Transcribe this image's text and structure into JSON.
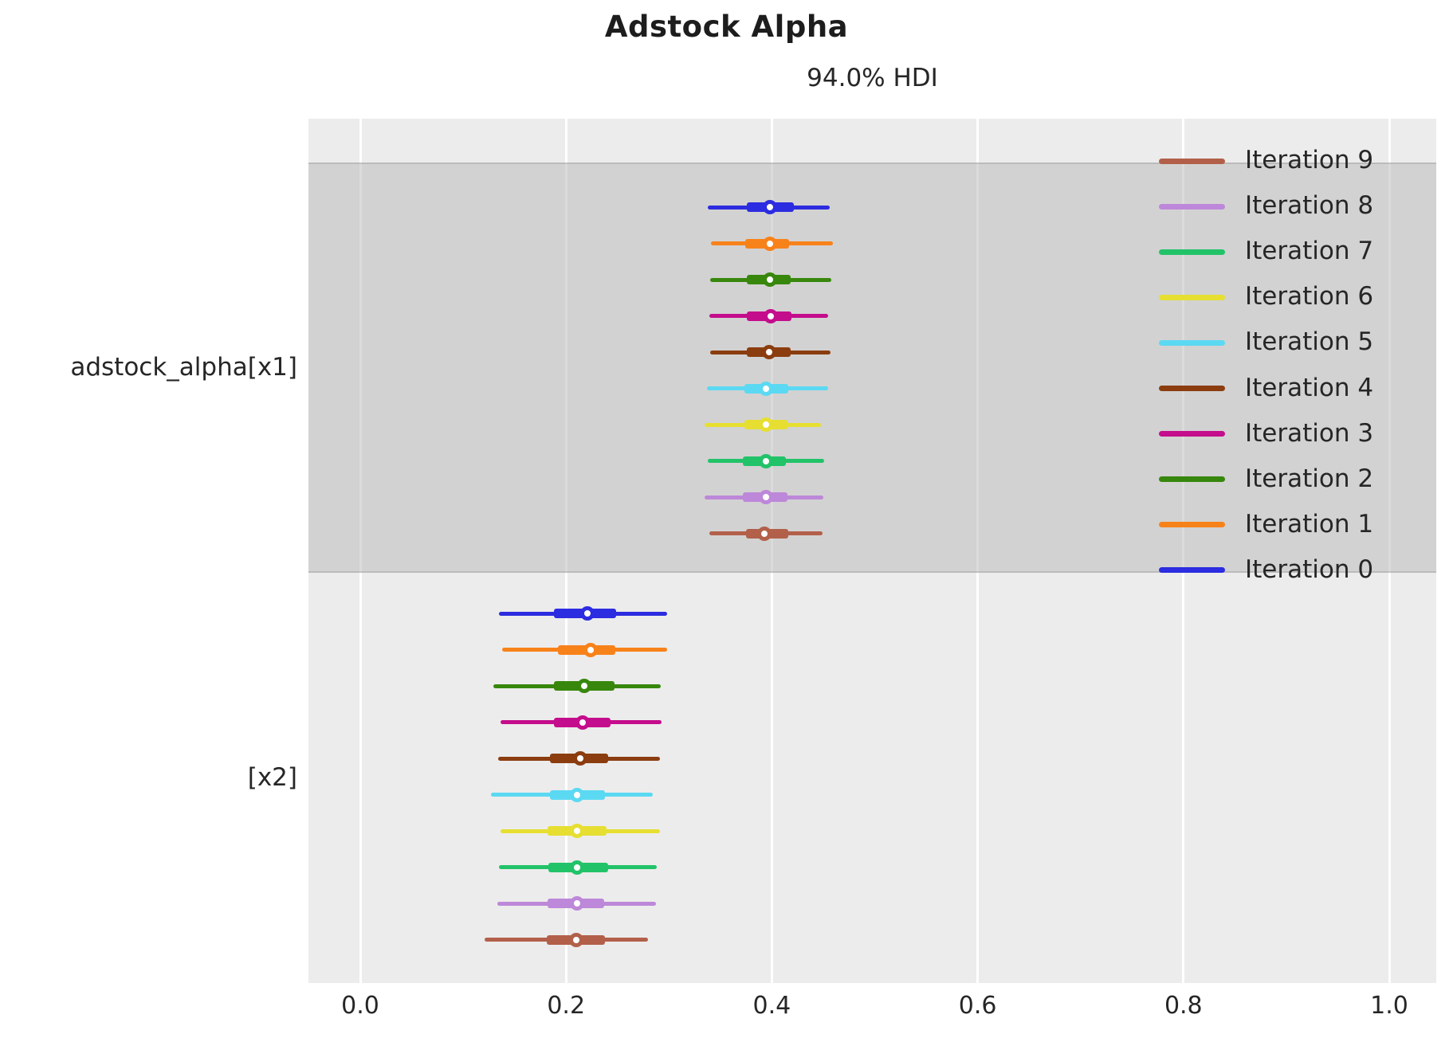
{
  "title": "Adstock Alpha",
  "subtitle": "94.0% HDI",
  "colors": {
    "figure_background": "#ffffff",
    "plot_background": "#ececec",
    "shaded_band": "#d4d4d4",
    "gridline": "#ffffff",
    "text": "#262626"
  },
  "chart_data": {
    "type": "forest",
    "title": "Adstock Alpha",
    "axes_title": "94.0% HDI",
    "hdi_probability": "94.0%",
    "xlabel": "",
    "ylabel": "",
    "xlim": [
      -0.05,
      1.05
    ],
    "grid": "vertical-white-on-gray",
    "x_ticks": [
      {
        "value": 0.0,
        "label": "0.0"
      },
      {
        "value": 0.2,
        "label": "0.2"
      },
      {
        "value": 0.4,
        "label": "0.4"
      },
      {
        "value": 0.6,
        "label": "0.6"
      },
      {
        "value": 0.8,
        "label": "0.8"
      },
      {
        "value": 1.0,
        "label": "1.0"
      }
    ],
    "y_labels": [
      "adstock_alpha[x1]",
      "[x2]"
    ],
    "legend_position": "upper-right-inside",
    "legend": [
      {
        "label": "Iteration 9",
        "color": "#b2604a"
      },
      {
        "label": "Iteration 8",
        "color": "#bd88d9"
      },
      {
        "label": "Iteration 7",
        "color": "#22c368"
      },
      {
        "label": "Iteration 6",
        "color": "#e6df31"
      },
      {
        "label": "Iteration 5",
        "color": "#5cd9f2"
      },
      {
        "label": "Iteration 4",
        "color": "#8b3d0f"
      },
      {
        "label": "Iteration 3",
        "color": "#c40d8c"
      },
      {
        "label": "Iteration 2",
        "color": "#37870c"
      },
      {
        "label": "Iteration 1",
        "color": "#f8821a"
      },
      {
        "label": "Iteration 0",
        "color": "#2c2ce0"
      }
    ],
    "groups": [
      {
        "name": "adstock_alpha[x1]",
        "shaded": true,
        "rows": [
          {
            "series": "Iteration 0",
            "color": "#2c2ce0",
            "hdi_94": [
              0.338,
              0.456
            ],
            "quartile": [
              0.376,
              0.421
            ],
            "median": 0.398
          },
          {
            "series": "Iteration 1",
            "color": "#f8821a",
            "hdi_94": [
              0.341,
              0.459
            ],
            "quartile": [
              0.374,
              0.417
            ],
            "median": 0.398
          },
          {
            "series": "Iteration 2",
            "color": "#37870c",
            "hdi_94": [
              0.34,
              0.458
            ],
            "quartile": [
              0.376,
              0.418
            ],
            "median": 0.398
          },
          {
            "series": "Iteration 3",
            "color": "#c40d8c",
            "hdi_94": [
              0.339,
              0.455
            ],
            "quartile": [
              0.376,
              0.419
            ],
            "median": 0.399
          },
          {
            "series": "Iteration 4",
            "color": "#8b3d0f",
            "hdi_94": [
              0.34,
              0.457
            ],
            "quartile": [
              0.376,
              0.418
            ],
            "median": 0.397
          },
          {
            "series": "Iteration 5",
            "color": "#5cd9f2",
            "hdi_94": [
              0.337,
              0.455
            ],
            "quartile": [
              0.373,
              0.416
            ],
            "median": 0.394
          },
          {
            "series": "Iteration 6",
            "color": "#e6df31",
            "hdi_94": [
              0.335,
              0.448
            ],
            "quartile": [
              0.373,
              0.415
            ],
            "median": 0.394
          },
          {
            "series": "Iteration 7",
            "color": "#22c368",
            "hdi_94": [
              0.338,
              0.451
            ],
            "quartile": [
              0.372,
              0.414
            ],
            "median": 0.394
          },
          {
            "series": "Iteration 8",
            "color": "#bd88d9",
            "hdi_94": [
              0.335,
              0.45
            ],
            "quartile": [
              0.372,
              0.415
            ],
            "median": 0.394
          },
          {
            "series": "Iteration 9",
            "color": "#b2604a",
            "hdi_94": [
              0.339,
              0.449
            ],
            "quartile": [
              0.375,
              0.416
            ],
            "median": 0.393
          }
        ]
      },
      {
        "name": "[x2]",
        "shaded": false,
        "rows": [
          {
            "series": "Iteration 0",
            "color": "#2c2ce0",
            "hdi_94": [
              0.135,
              0.298
            ],
            "quartile": [
              0.188,
              0.249
            ],
            "median": 0.221
          },
          {
            "series": "Iteration 1",
            "color": "#f8821a",
            "hdi_94": [
              0.138,
              0.298
            ],
            "quartile": [
              0.192,
              0.248
            ],
            "median": 0.224
          },
          {
            "series": "Iteration 2",
            "color": "#37870c",
            "hdi_94": [
              0.129,
              0.292
            ],
            "quartile": [
              0.188,
              0.247
            ],
            "median": 0.218
          },
          {
            "series": "Iteration 3",
            "color": "#c40d8c",
            "hdi_94": [
              0.136,
              0.293
            ],
            "quartile": [
              0.188,
              0.243
            ],
            "median": 0.216
          },
          {
            "series": "Iteration 4",
            "color": "#8b3d0f",
            "hdi_94": [
              0.134,
              0.291
            ],
            "quartile": [
              0.184,
              0.241
            ],
            "median": 0.214
          },
          {
            "series": "Iteration 5",
            "color": "#5cd9f2",
            "hdi_94": [
              0.127,
              0.284
            ],
            "quartile": [
              0.184,
              0.238
            ],
            "median": 0.211
          },
          {
            "series": "Iteration 6",
            "color": "#e6df31",
            "hdi_94": [
              0.136,
              0.291
            ],
            "quartile": [
              0.182,
              0.239
            ],
            "median": 0.211
          },
          {
            "series": "Iteration 7",
            "color": "#22c368",
            "hdi_94": [
              0.135,
              0.288
            ],
            "quartile": [
              0.183,
              0.241
            ],
            "median": 0.211
          },
          {
            "series": "Iteration 8",
            "color": "#bd88d9",
            "hdi_94": [
              0.133,
              0.287
            ],
            "quartile": [
              0.182,
              0.237
            ],
            "median": 0.211
          },
          {
            "series": "Iteration 9",
            "color": "#b2604a",
            "hdi_94": [
              0.121,
              0.28
            ],
            "quartile": [
              0.181,
              0.238
            ],
            "median": 0.21
          }
        ]
      }
    ]
  }
}
